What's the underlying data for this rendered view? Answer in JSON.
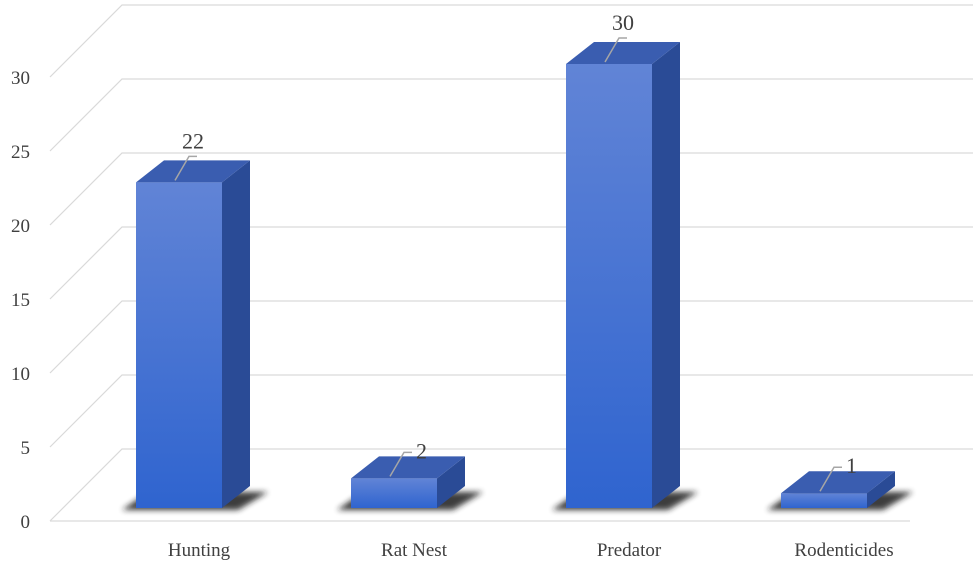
{
  "chart_data": {
    "type": "bar",
    "style": "3d-column",
    "categories": [
      "Hunting",
      "Rat Nest",
      "Predator",
      "Rodenticides"
    ],
    "values": [
      22,
      2,
      30,
      1
    ],
    "ylim": [
      0,
      30
    ],
    "yticks": [
      0,
      5,
      10,
      15,
      20,
      25,
      30
    ],
    "grid": true,
    "legend": "none",
    "data_labels": true,
    "colors": {
      "front_top": "#6184d6",
      "front_bottom": "#2f64cf",
      "side": "#2a4b96",
      "top": "#3a5db0",
      "shadow": "#1a1a1a",
      "grid": "#d9d9d9",
      "text": "#404040"
    }
  }
}
